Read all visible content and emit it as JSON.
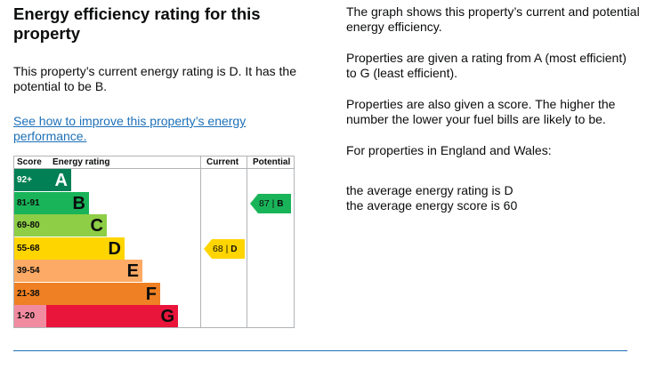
{
  "left": {
    "heading": "Energy efficiency rating for this property",
    "current_text": "This property’s current energy rating is D. It has the potential to be B.",
    "link": "See how to improve this property’s energy performance."
  },
  "right": {
    "p1": "The graph shows this property’s current and potential energy efficiency.",
    "p2": "Properties are given a rating from A (most efficient) to G (least efficient).",
    "p3": "Properties are also given a score. The higher the number the lower your fuel bills are likely to be.",
    "p4": "For properties in England and Wales:",
    "avg1": "the average energy rating is D",
    "avg2": "the average energy score is 60"
  },
  "chart": {
    "headers": {
      "score": "Score",
      "rating": "Energy rating",
      "current": "Current",
      "potential": "Potential"
    },
    "bands": [
      {
        "range": "92+",
        "letter": "A",
        "color": "#008054",
        "score_bg": "#008054",
        "score_fg": "#ffffff"
      },
      {
        "range": "81-91",
        "letter": "B",
        "color": "#19b459",
        "score_bg": "#19b459",
        "score_fg": "#0b0c0c"
      },
      {
        "range": "69-80",
        "letter": "C",
        "color": "#8dce46",
        "score_bg": "#8dce46",
        "score_fg": "#0b0c0c"
      },
      {
        "range": "55-68",
        "letter": "D",
        "color": "#ffd500",
        "score_bg": "#ffd500",
        "score_fg": "#0b0c0c"
      },
      {
        "range": "39-54",
        "letter": "E",
        "color": "#fcaa65",
        "score_bg": "#fcaa65",
        "score_fg": "#0b0c0c"
      },
      {
        "range": "21-38",
        "letter": "F",
        "color": "#ef8023",
        "score_bg": "#ef8023",
        "score_fg": "#0b0c0c"
      },
      {
        "range": "1-20",
        "letter": "G",
        "color": "#e9153b",
        "score_bg": "#f18ba0",
        "score_fg": "#0b0c0c"
      }
    ],
    "current": {
      "score": "68",
      "sep": " | ",
      "letter": "D",
      "band_index": 3,
      "color": "#ffd500"
    },
    "potential": {
      "score": "87",
      "sep": " | ",
      "letter": "B",
      "band_index": 1,
      "color": "#19b459"
    }
  }
}
